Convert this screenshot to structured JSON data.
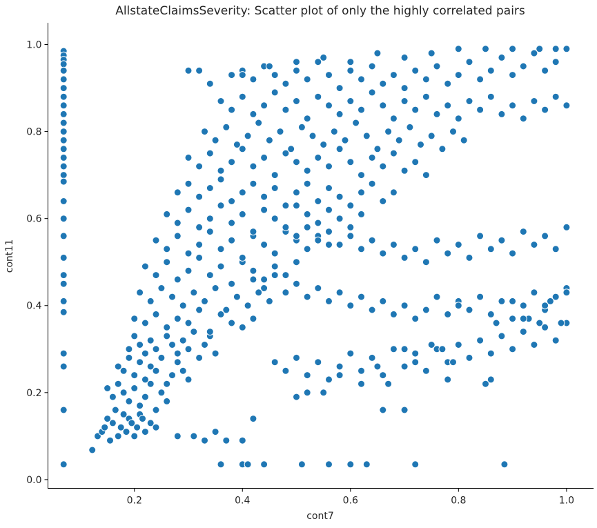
{
  "chart_data": {
    "type": "scatter",
    "title": "AllstateClaimsSeverity: Scatter plot of only the highly correlated pairs",
    "xlabel": "cont7",
    "ylabel": "cont11",
    "xlim": [
      0.04,
      1.05
    ],
    "ylim": [
      -0.02,
      1.05
    ],
    "xticks": [
      0.2,
      0.4,
      0.6,
      0.8,
      1.0
    ],
    "xtick_labels": [
      "0.2",
      "0.4",
      "0.6",
      "0.8",
      "1.0"
    ],
    "yticks": [
      0.0,
      0.2,
      0.4,
      0.6,
      0.8,
      1.0
    ],
    "ytick_labels": [
      "0.0",
      "0.2",
      "0.4",
      "0.6",
      "0.8",
      "1.0"
    ],
    "grid": false,
    "marker_color": "#1f77b4",
    "marker_edge_color": "#ffffff",
    "x": [
      0.069,
      0.069,
      0.069,
      0.069,
      0.069,
      0.069,
      0.069,
      0.069,
      0.069,
      0.069,
      0.069,
      0.069,
      0.069,
      0.069,
      0.069,
      0.069,
      0.069,
      0.069,
      0.069,
      0.069,
      0.069,
      0.069,
      0.069,
      0.069,
      0.069,
      0.069,
      0.069,
      0.069,
      0.069,
      0.069,
      0.122,
      0.132,
      0.14,
      0.145,
      0.15,
      0.155,
      0.16,
      0.165,
      0.17,
      0.175,
      0.18,
      0.185,
      0.19,
      0.195,
      0.2,
      0.205,
      0.21,
      0.215,
      0.22,
      0.23,
      0.24,
      0.15,
      0.16,
      0.17,
      0.18,
      0.19,
      0.2,
      0.21,
      0.22,
      0.23,
      0.24,
      0.25,
      0.26,
      0.17,
      0.18,
      0.19,
      0.2,
      0.21,
      0.22,
      0.23,
      0.24,
      0.25,
      0.26,
      0.27,
      0.28,
      0.29,
      0.3,
      0.19,
      0.2,
      0.21,
      0.22,
      0.23,
      0.24,
      0.25,
      0.26,
      0.27,
      0.28,
      0.29,
      0.3,
      0.31,
      0.32,
      0.33,
      0.34,
      0.35,
      0.2,
      0.22,
      0.24,
      0.26,
      0.28,
      0.3,
      0.32,
      0.34,
      0.36,
      0.38,
      0.4,
      0.42,
      0.21,
      0.23,
      0.25,
      0.27,
      0.29,
      0.31,
      0.33,
      0.35,
      0.37,
      0.39,
      0.41,
      0.43,
      0.45,
      0.22,
      0.24,
      0.26,
      0.28,
      0.3,
      0.32,
      0.34,
      0.36,
      0.38,
      0.4,
      0.42,
      0.44,
      0.46,
      0.48,
      0.5,
      0.24,
      0.26,
      0.28,
      0.3,
      0.32,
      0.34,
      0.36,
      0.38,
      0.4,
      0.42,
      0.44,
      0.46,
      0.48,
      0.5,
      0.52,
      0.54,
      0.56,
      0.26,
      0.28,
      0.3,
      0.32,
      0.34,
      0.36,
      0.38,
      0.4,
      0.42,
      0.44,
      0.46,
      0.48,
      0.5,
      0.52,
      0.54,
      0.56,
      0.58,
      0.6,
      0.62,
      0.28,
      0.3,
      0.32,
      0.34,
      0.36,
      0.38,
      0.4,
      0.42,
      0.44,
      0.46,
      0.48,
      0.5,
      0.52,
      0.54,
      0.56,
      0.58,
      0.6,
      0.62,
      0.64,
      0.66,
      0.68,
      0.3,
      0.32,
      0.34,
      0.36,
      0.38,
      0.4,
      0.42,
      0.44,
      0.46,
      0.48,
      0.5,
      0.52,
      0.54,
      0.56,
      0.58,
      0.6,
      0.62,
      0.64,
      0.66,
      0.68,
      0.7,
      0.72,
      0.74,
      0.33,
      0.35,
      0.37,
      0.39,
      0.41,
      0.43,
      0.45,
      0.47,
      0.49,
      0.51,
      0.53,
      0.55,
      0.57,
      0.59,
      0.61,
      0.63,
      0.65,
      0.67,
      0.69,
      0.71,
      0.73,
      0.75,
      0.77,
      0.79,
      0.81,
      0.36,
      0.38,
      0.4,
      0.42,
      0.44,
      0.46,
      0.48,
      0.5,
      0.52,
      0.54,
      0.56,
      0.58,
      0.6,
      0.62,
      0.64,
      0.66,
      0.68,
      0.7,
      0.72,
      0.74,
      0.76,
      0.78,
      0.8,
      0.82,
      0.84,
      0.86,
      0.88,
      0.9,
      0.92,
      0.94,
      0.96,
      0.98,
      1.0,
      0.38,
      0.4,
      0.42,
      0.44,
      0.46,
      0.48,
      0.5,
      0.52,
      0.54,
      0.56,
      0.58,
      0.6,
      0.62,
      0.64,
      0.66,
      0.68,
      0.7,
      0.72,
      0.74,
      0.76,
      0.78,
      0.8,
      0.82,
      0.84,
      0.86,
      0.88,
      0.9,
      0.92,
      0.94,
      0.96,
      0.98,
      1.0,
      0.42,
      0.44,
      0.46,
      0.48,
      0.5,
      0.52,
      0.54,
      0.56,
      0.58,
      0.6,
      0.62,
      0.64,
      0.66,
      0.68,
      0.7,
      0.72,
      0.74,
      0.76,
      0.78,
      0.8,
      0.82,
      0.84,
      0.86,
      0.88,
      0.9,
      0.92,
      0.94,
      0.96,
      0.98,
      1.0,
      0.46,
      0.48,
      0.5,
      0.52,
      0.54,
      0.56,
      0.58,
      0.6,
      0.62,
      0.64,
      0.66,
      0.68,
      0.7,
      0.72,
      0.74,
      0.76,
      0.78,
      0.8,
      0.82,
      0.84,
      0.86,
      0.88,
      0.9,
      0.92,
      0.94,
      0.96,
      0.98,
      1.0,
      0.5,
      0.52,
      0.54,
      0.56,
      0.58,
      0.6,
      0.62,
      0.64,
      0.66,
      0.68,
      0.7,
      0.72,
      0.74,
      0.76,
      0.78,
      0.8,
      0.82,
      0.84,
      0.86,
      0.88,
      0.9,
      0.92,
      0.94,
      0.96,
      0.98,
      1.0,
      0.3,
      0.32,
      0.34,
      0.4,
      0.45,
      0.5,
      0.55,
      0.6,
      0.65,
      0.7,
      0.75,
      0.8,
      0.85,
      0.9,
      0.95,
      0.98,
      1.0,
      0.36,
      0.4,
      0.41,
      0.44,
      0.51,
      0.56,
      0.6,
      0.63,
      0.72,
      0.885,
      0.28,
      0.31,
      0.33,
      0.35,
      0.37,
      0.4,
      0.42,
      0.5,
      0.52,
      0.55,
      0.58,
      0.62,
      0.65,
      0.67,
      0.7,
      0.72,
      0.75,
      0.79,
      0.8,
      0.85,
      0.87,
      0.9,
      0.93,
      0.96,
      1.0,
      0.66,
      0.7,
      0.77,
      0.78,
      0.86,
      0.92,
      0.95,
      0.97,
      0.99
    ],
    "y": [
      0.985,
      0.975,
      0.965,
      0.955,
      0.94,
      0.92,
      0.9,
      0.88,
      0.86,
      0.84,
      0.82,
      0.8,
      0.78,
      0.76,
      0.74,
      0.72,
      0.7,
      0.685,
      0.64,
      0.6,
      0.56,
      0.51,
      0.47,
      0.45,
      0.41,
      0.385,
      0.29,
      0.26,
      0.16,
      0.035,
      0.068,
      0.1,
      0.11,
      0.12,
      0.14,
      0.09,
      0.13,
      0.16,
      0.1,
      0.12,
      0.15,
      0.11,
      0.14,
      0.13,
      0.1,
      0.12,
      0.15,
      0.14,
      0.11,
      0.13,
      0.12,
      0.21,
      0.19,
      0.22,
      0.2,
      0.18,
      0.21,
      0.17,
      0.19,
      0.22,
      0.16,
      0.2,
      0.18,
      0.26,
      0.25,
      0.28,
      0.24,
      0.27,
      0.23,
      0.26,
      0.25,
      0.28,
      0.22,
      0.24,
      0.27,
      0.25,
      0.23,
      0.3,
      0.33,
      0.31,
      0.29,
      0.32,
      0.3,
      0.28,
      0.33,
      0.31,
      0.29,
      0.32,
      0.3,
      0.34,
      0.28,
      0.31,
      0.33,
      0.29,
      0.37,
      0.36,
      0.38,
      0.35,
      0.37,
      0.36,
      0.39,
      0.34,
      0.38,
      0.36,
      0.35,
      0.37,
      0.43,
      0.41,
      0.44,
      0.42,
      0.4,
      0.43,
      0.41,
      0.44,
      0.39,
      0.42,
      0.4,
      0.43,
      0.41,
      0.49,
      0.47,
      0.5,
      0.46,
      0.48,
      0.51,
      0.47,
      0.49,
      0.45,
      0.5,
      0.48,
      0.46,
      0.49,
      0.47,
      0.5,
      0.55,
      0.53,
      0.56,
      0.52,
      0.54,
      0.57,
      0.53,
      0.55,
      0.51,
      0.56,
      0.54,
      0.52,
      0.57,
      0.55,
      0.53,
      0.56,
      0.54,
      0.61,
      0.59,
      0.62,
      0.58,
      0.6,
      0.63,
      0.59,
      0.61,
      0.57,
      0.62,
      0.6,
      0.58,
      0.63,
      0.61,
      0.59,
      0.62,
      0.6,
      0.58,
      0.61,
      0.66,
      0.68,
      0.65,
      0.67,
      0.69,
      0.64,
      0.66,
      0.68,
      0.65,
      0.67,
      0.63,
      0.66,
      0.68,
      0.64,
      0.67,
      0.65,
      0.63,
      0.66,
      0.68,
      0.64,
      0.66,
      0.74,
      0.72,
      0.75,
      0.71,
      0.73,
      0.76,
      0.72,
      0.74,
      0.7,
      0.75,
      0.73,
      0.71,
      0.74,
      0.72,
      0.76,
      0.73,
      0.7,
      0.74,
      0.72,
      0.75,
      0.71,
      0.73,
      0.7,
      0.8,
      0.78,
      0.81,
      0.77,
      0.79,
      0.82,
      0.78,
      0.8,
      0.76,
      0.81,
      0.79,
      0.77,
      0.8,
      0.78,
      0.82,
      0.79,
      0.76,
      0.8,
      0.78,
      0.81,
      0.77,
      0.79,
      0.76,
      0.8,
      0.78,
      0.87,
      0.85,
      0.88,
      0.84,
      0.86,
      0.89,
      0.85,
      0.87,
      0.83,
      0.88,
      0.86,
      0.84,
      0.87,
      0.85,
      0.89,
      0.86,
      0.83,
      0.87,
      0.85,
      0.88,
      0.84,
      0.86,
      0.83,
      0.87,
      0.85,
      0.88,
      0.84,
      0.86,
      0.83,
      0.87,
      0.85,
      0.88,
      0.86,
      0.93,
      0.94,
      0.92,
      0.95,
      0.93,
      0.91,
      0.94,
      0.92,
      0.96,
      0.93,
      0.9,
      0.94,
      0.92,
      0.95,
      0.91,
      0.93,
      0.9,
      0.94,
      0.92,
      0.95,
      0.91,
      0.93,
      0.96,
      0.92,
      0.94,
      0.97,
      0.93,
      0.95,
      0.98,
      0.94,
      0.96,
      0.99,
      0.46,
      0.44,
      0.47,
      0.43,
      0.45,
      0.42,
      0.44,
      0.41,
      0.43,
      0.4,
      0.42,
      0.39,
      0.41,
      0.38,
      0.4,
      0.37,
      0.39,
      0.42,
      0.38,
      0.41,
      0.39,
      0.42,
      0.38,
      0.41,
      0.37,
      0.4,
      0.43,
      0.39,
      0.42,
      0.44,
      0.27,
      0.25,
      0.28,
      0.24,
      0.27,
      0.23,
      0.26,
      0.29,
      0.25,
      0.28,
      0.24,
      0.3,
      0.26,
      0.29,
      0.25,
      0.3,
      0.27,
      0.31,
      0.28,
      0.32,
      0.29,
      0.33,
      0.3,
      0.34,
      0.31,
      0.35,
      0.32,
      0.36,
      0.56,
      0.58,
      0.55,
      0.57,
      0.54,
      0.56,
      0.53,
      0.55,
      0.52,
      0.54,
      0.51,
      0.53,
      0.5,
      0.55,
      0.52,
      0.54,
      0.51,
      0.56,
      0.53,
      0.55,
      0.52,
      0.57,
      0.54,
      0.56,
      0.53,
      0.58,
      0.94,
      0.94,
      0.91,
      0.93,
      0.95,
      0.96,
      0.97,
      0.96,
      0.98,
      0.97,
      0.98,
      0.99,
      0.99,
      0.99,
      0.99,
      0.99,
      0.99,
      0.035,
      0.035,
      0.035,
      0.035,
      0.035,
      0.035,
      0.035,
      0.035,
      0.035,
      0.035,
      0.1,
      0.1,
      0.09,
      0.11,
      0.09,
      0.09,
      0.14,
      0.19,
      0.2,
      0.2,
      0.24,
      0.22,
      0.26,
      0.22,
      0.3,
      0.27,
      0.31,
      0.27,
      0.4,
      0.22,
      0.36,
      0.41,
      0.37,
      0.4,
      0.43,
      0.16,
      0.16,
      0.3,
      0.23,
      0.23,
      0.37,
      0.36,
      0.41,
      0.36
    ]
  }
}
